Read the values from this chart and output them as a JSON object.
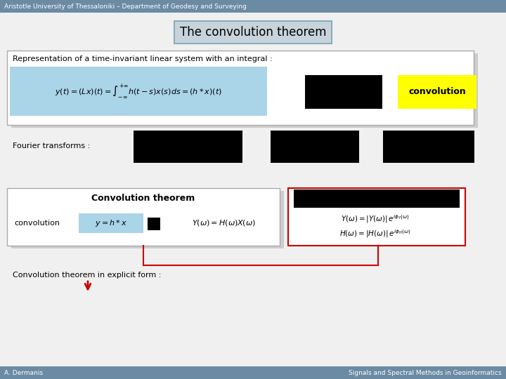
{
  "title": "The convolution theorem",
  "header_text": "Aristotle University of Thessaloniki – Department of Geodesy and Surveying",
  "footer_left": "A. Dermanis",
  "footer_right": "Signals and Spectral Methods in Geoinformatics",
  "header_bg": "#6b8ba4",
  "main_bg": "#dde3e8",
  "rep_box_bg": "#ffffff",
  "rep_box_border": "#aaaaaa",
  "formula_bg": "#aad4e8",
  "convolution_bg": "#ffff00",
  "black_box": "#000000",
  "conv_theorem_box_bg": "#ffffff",
  "conv_theorem_box_border": "#aaaaaa",
  "red_border": "#cc0000",
  "arrow_color": "#cc0000",
  "shadow_color": "#999999",
  "title_bg": "#c8d4dc",
  "title_border": "#8aacbc"
}
